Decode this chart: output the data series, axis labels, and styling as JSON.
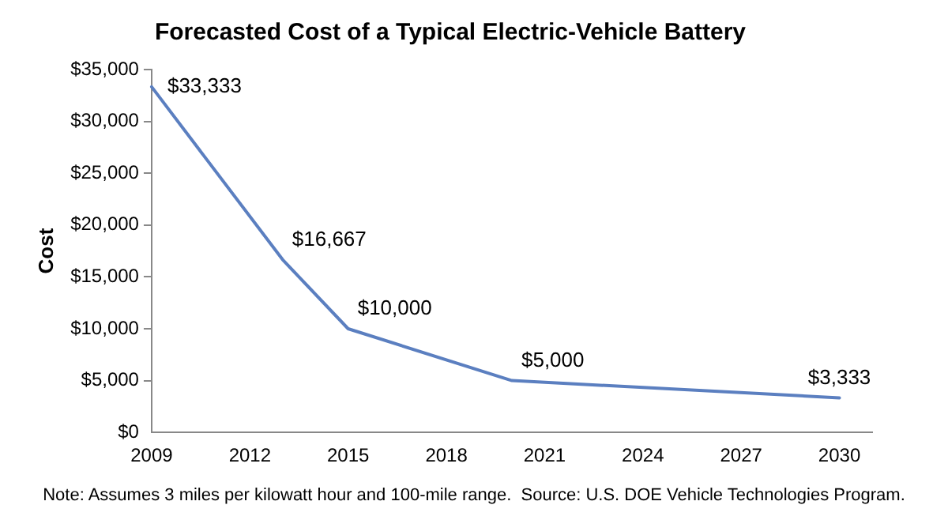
{
  "chart_data": {
    "type": "line",
    "title": "Forecasted Cost of a Typical Electric-Vehicle Battery",
    "ylabel": "Cost",
    "x": [
      2009,
      2013,
      2015,
      2020,
      2030
    ],
    "series": [
      {
        "color": "#5b7fc0",
        "values": [
          33333,
          16667,
          10000,
          5000,
          3333
        ],
        "value_labels": [
          "$33,333",
          "$16,667",
          "$10,000",
          "$5,000",
          "$3,333"
        ]
      }
    ],
    "xlim": [
      2009,
      2031
    ],
    "xticks": [
      2009,
      2012,
      2015,
      2018,
      2021,
      2024,
      2027,
      2030
    ],
    "ylim": [
      0,
      35000
    ],
    "yticks": [
      {
        "value": 0,
        "label": "$0"
      },
      {
        "value": 5000,
        "label": "$5,000"
      },
      {
        "value": 10000,
        "label": "$10,000"
      },
      {
        "value": 15000,
        "label": "$15,000"
      },
      {
        "value": 20000,
        "label": "$20,000"
      },
      {
        "value": 25000,
        "label": "$25,000"
      },
      {
        "value": 30000,
        "label": "$30,000"
      },
      {
        "value": 35000,
        "label": "$35,000"
      }
    ],
    "grid": false,
    "legend": false,
    "marker": "none",
    "line_style": "solid",
    "annotations": [
      "Note: Assumes 3 miles per kilowatt hour and 100-mile range.  Source: U.S. DOE Vehicle Technologies Program."
    ]
  }
}
